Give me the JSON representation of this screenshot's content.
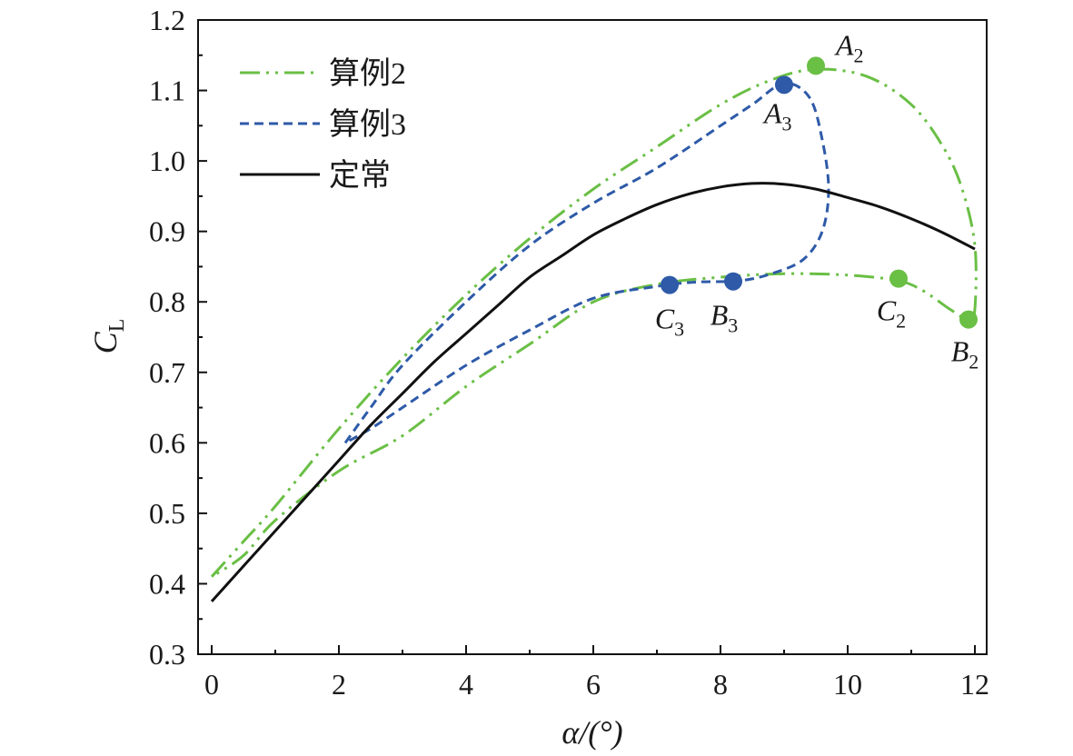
{
  "chart_data": {
    "type": "line",
    "title": "",
    "xlabel": "α/(°)",
    "ylabel": "C_L",
    "xlim": [
      0,
      12
    ],
    "ylim": [
      0.3,
      1.2
    ],
    "xticks": [
      "0",
      "2",
      "4",
      "6",
      "8",
      "10",
      "12"
    ],
    "yticks": [
      "0.3",
      "0.4",
      "0.5",
      "0.6",
      "0.7",
      "0.8",
      "0.9",
      "1.0",
      "1.1",
      "1.2"
    ],
    "grid": false,
    "legend_position": "top-left",
    "colors": {
      "case2": "#6abf45",
      "case3": "#2e5aa8",
      "steady": "#111111"
    },
    "series": [
      {
        "name": "算例2",
        "style": "dash-dot-dot",
        "x": [
          0.0,
          0.5,
          1.0,
          2.0,
          3.0,
          4.0,
          5.0,
          6.0,
          7.0,
          8.0,
          8.8,
          9.5,
          10.3,
          11.0,
          11.5,
          11.8,
          12.0,
          12.0,
          11.9,
          11.6,
          11.2,
          10.8,
          10.0,
          9.0,
          8.0,
          7.0,
          6.0,
          5.0,
          4.0,
          3.0,
          2.0,
          1.0,
          0.5,
          0.0
        ],
        "y": [
          0.41,
          0.46,
          0.51,
          0.62,
          0.72,
          0.81,
          0.89,
          0.96,
          1.02,
          1.08,
          1.115,
          1.13,
          1.12,
          1.08,
          1.02,
          0.96,
          0.88,
          0.79,
          0.775,
          0.79,
          0.815,
          0.83,
          0.838,
          0.84,
          0.835,
          0.825,
          0.8,
          0.74,
          0.68,
          0.61,
          0.56,
          0.49,
          0.44,
          0.41
        ]
      },
      {
        "name": "算例3",
        "style": "dashed",
        "x": [
          2.1,
          2.5,
          3.0,
          4.0,
          5.0,
          6.0,
          7.0,
          8.0,
          8.5,
          9.0,
          9.4,
          9.6,
          9.7,
          9.6,
          9.3,
          8.8,
          8.3,
          7.6,
          7.0,
          6.0,
          5.0,
          4.0,
          3.0,
          2.5,
          2.1
        ],
        "y": [
          0.6,
          0.65,
          0.71,
          0.8,
          0.88,
          0.94,
          0.99,
          1.05,
          1.08,
          1.11,
          1.09,
          1.03,
          0.96,
          0.9,
          0.86,
          0.84,
          0.83,
          0.828,
          0.822,
          0.805,
          0.76,
          0.71,
          0.65,
          0.62,
          0.6
        ]
      },
      {
        "name": "定常",
        "style": "solid",
        "x": [
          0.0,
          0.5,
          1.0,
          1.5,
          2.0,
          2.5,
          3.0,
          3.5,
          4.0,
          4.5,
          5.0,
          5.5,
          6.0,
          6.5,
          7.0,
          7.5,
          8.0,
          8.5,
          9.0,
          9.5,
          10.0,
          10.5,
          11.0,
          11.5,
          12.0
        ],
        "y": [
          0.375,
          0.425,
          0.475,
          0.525,
          0.575,
          0.625,
          0.67,
          0.715,
          0.755,
          0.795,
          0.835,
          0.865,
          0.895,
          0.918,
          0.938,
          0.953,
          0.963,
          0.968,
          0.967,
          0.96,
          0.948,
          0.935,
          0.918,
          0.898,
          0.875
        ]
      }
    ],
    "points": [
      {
        "label": "A",
        "sub": "2",
        "x": 9.5,
        "y": 1.135,
        "series": "算例2"
      },
      {
        "label": "B",
        "sub": "2",
        "x": 11.9,
        "y": 0.775,
        "series": "算例2"
      },
      {
        "label": "C",
        "sub": "2",
        "x": 10.8,
        "y": 0.833,
        "series": "算例2"
      },
      {
        "label": "A",
        "sub": "3",
        "x": 9.0,
        "y": 1.108,
        "series": "算例3"
      },
      {
        "label": "B",
        "sub": "3",
        "x": 8.2,
        "y": 0.829,
        "series": "算例3"
      },
      {
        "label": "C",
        "sub": "3",
        "x": 7.2,
        "y": 0.824,
        "series": "算例3"
      }
    ]
  }
}
